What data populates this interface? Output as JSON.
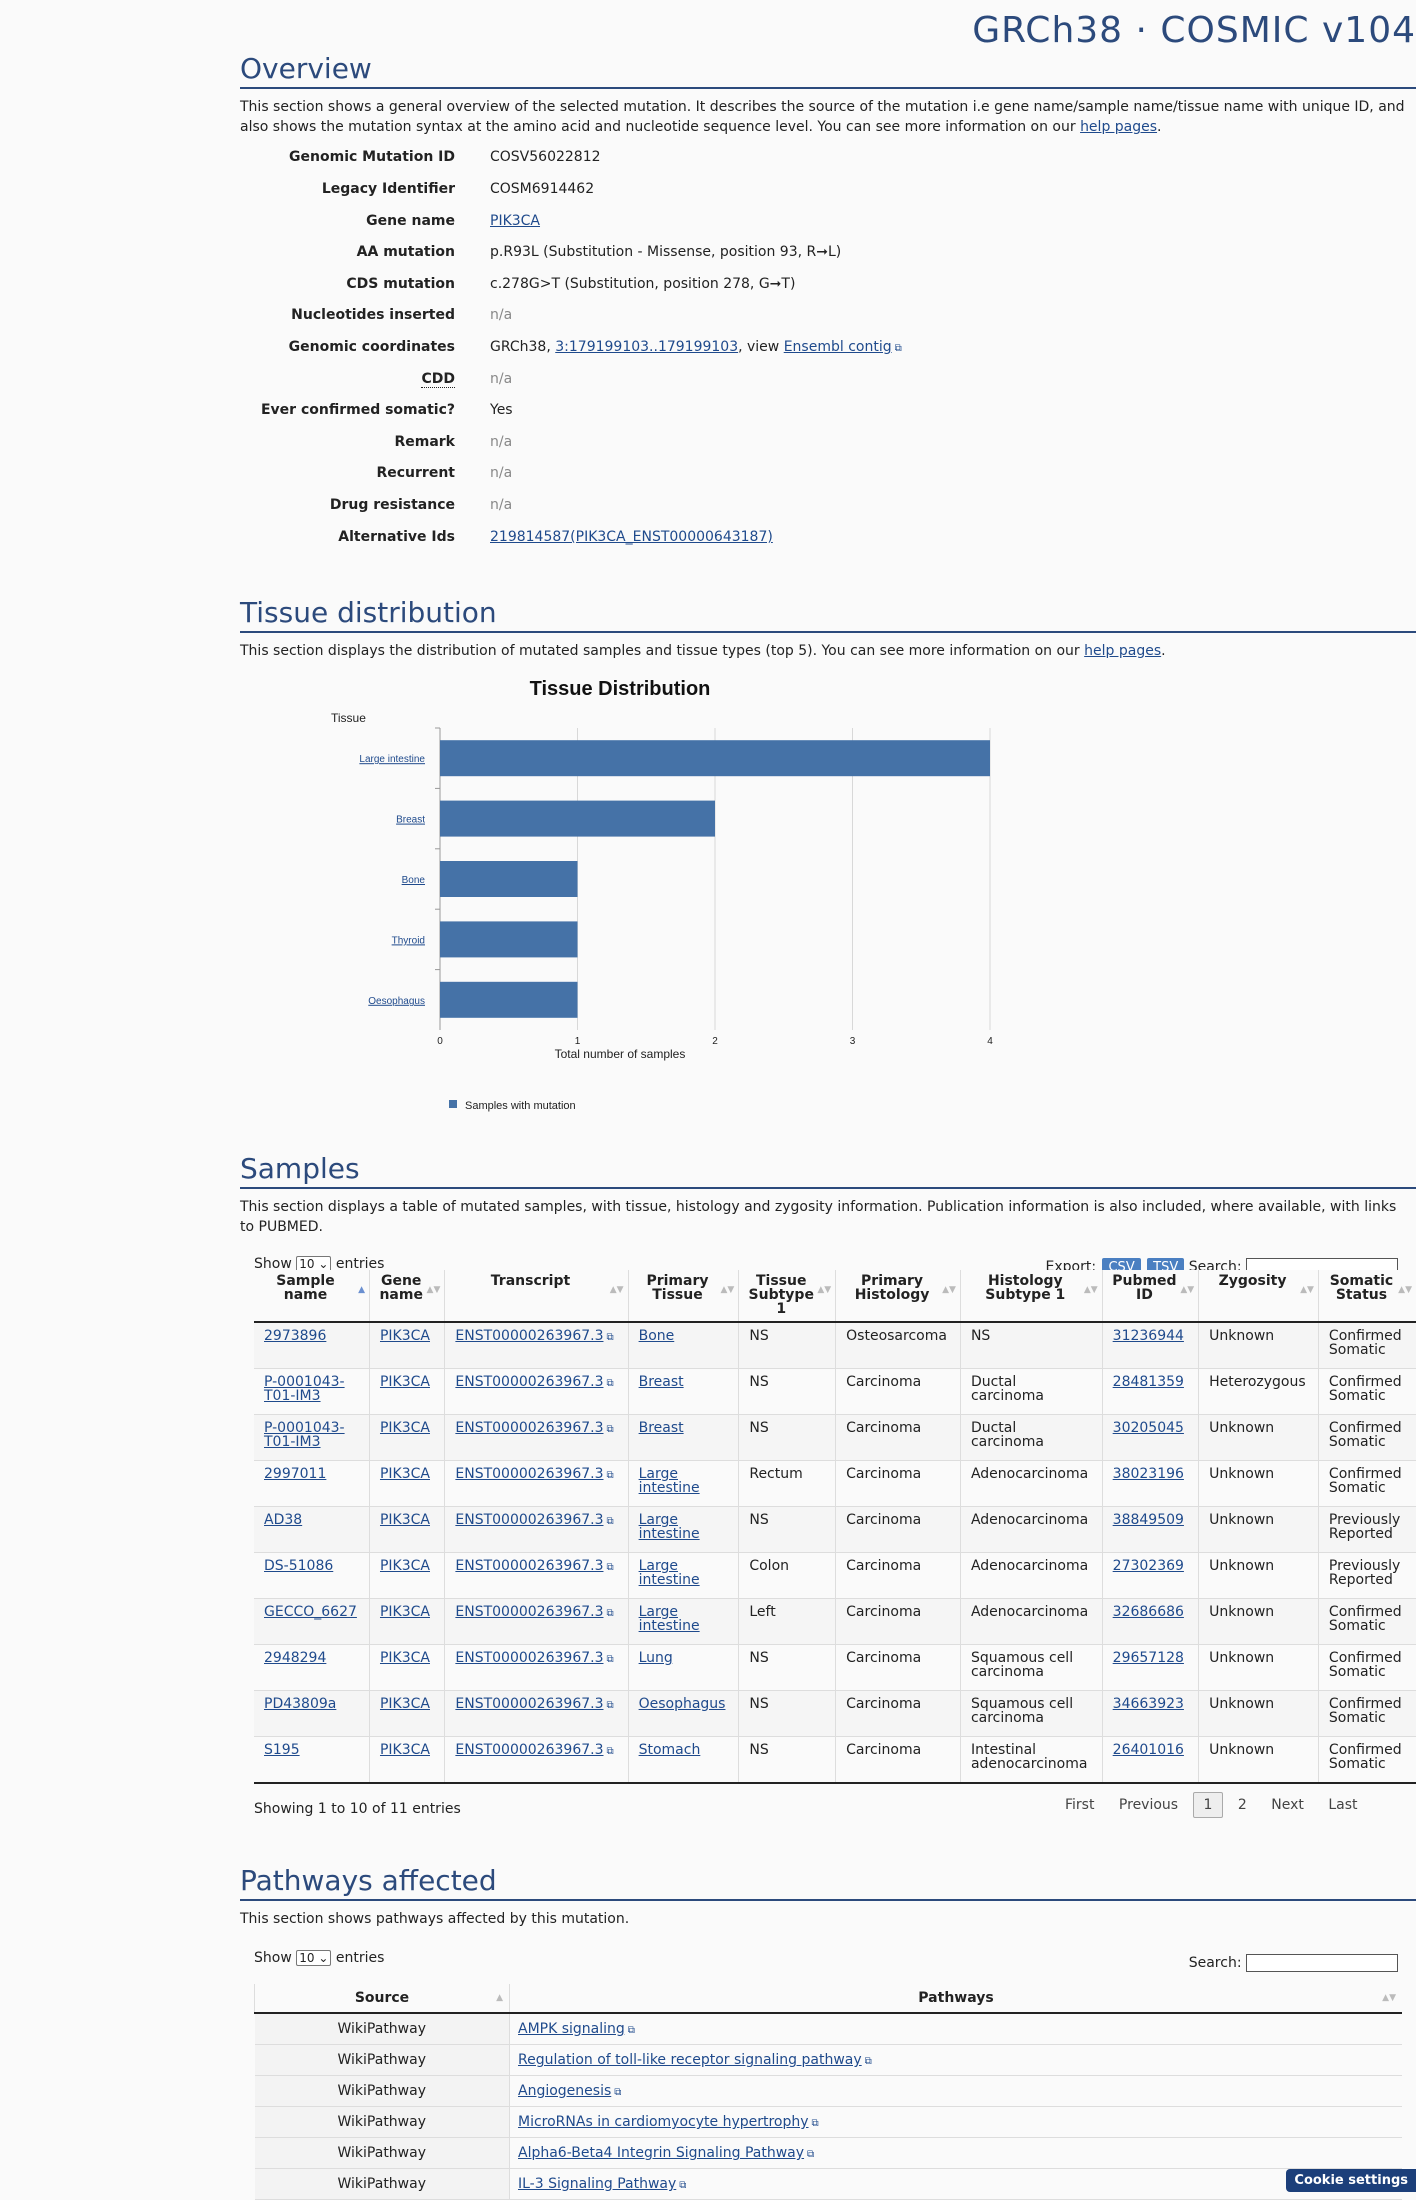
{
  "header": {
    "title": "GRCh38 · COSMIC v104"
  },
  "overview": {
    "title": "Overview",
    "desc_line1": "This section shows a general overview of the selected mutation. It describes the source of the mutation i.e gene name/sample name/tissue name with unique ID, and",
    "desc_line2_pre": "also shows the mutation syntax at the amino acid and nucleotide sequence level. You can see more information on our ",
    "help_link": "help pages",
    "desc_end": ".",
    "rows": {
      "genomic_id": {
        "label": "Genomic Mutation ID",
        "value": "COSV56022812"
      },
      "legacy_id": {
        "label": "Legacy Identifier",
        "value": "COSM6914462"
      },
      "gene": {
        "label": "Gene name",
        "value": "PIK3CA"
      },
      "aa": {
        "label": "AA mutation",
        "value": "p.R93L (Substitution - Missense, position 93, R➞L)"
      },
      "cds": {
        "label": "CDS mutation",
        "value": "c.278G>T (Substitution, position 278, G➞T)"
      },
      "nuc_ins": {
        "label": "Nucleotides inserted",
        "value": "n/a"
      },
      "coords": {
        "label": "Genomic coordinates",
        "prefix": "GRCh38, ",
        "link": "3:179199103..179199103",
        "mid": ", view ",
        "link2": "Ensembl contig"
      },
      "cdd": {
        "label": "CDD",
        "value": "n/a"
      },
      "confirmed": {
        "label": "Ever confirmed somatic?",
        "value": "Yes"
      },
      "remark": {
        "label": "Remark",
        "value": "n/a"
      },
      "recurrent": {
        "label": "Recurrent",
        "value": "n/a"
      },
      "drug": {
        "label": "Drug resistance",
        "value": "n/a"
      },
      "alt_ids": {
        "label": "Alternative Ids",
        "value": "219814587(PIK3CA_ENST00000643187)"
      }
    }
  },
  "tissue": {
    "title": "Tissue distribution",
    "desc_pre": "This section displays the distribution of mutated samples and tissue types (top 5). You can see more information on our ",
    "help_link": "help pages",
    "desc_end": "."
  },
  "chart_data": {
    "type": "bar",
    "orientation": "horizontal",
    "title": "Tissue Distribution",
    "ylabel": "Tissue",
    "xlabel": "Total number of samples",
    "categories": [
      "Large intestine",
      "Breast",
      "Bone",
      "Thyroid",
      "Oesophagus"
    ],
    "series": [
      {
        "name": "Samples with mutation",
        "values": [
          4,
          2,
          1,
          1,
          1
        ]
      }
    ],
    "xticks": [
      0,
      1,
      2,
      3,
      4
    ],
    "xlim": [
      0,
      4
    ],
    "grid": true,
    "legend": "bottom-left",
    "color": "#4572a7"
  },
  "samples": {
    "title": "Samples",
    "desc_line1": "This section displays a table of mutated samples, with tissue, histology and zygosity information. Publication information is also included, where available, with links",
    "desc_line2": "to PUBMED.",
    "show_label": "Show",
    "show_value": "10",
    "entries_label": "entries",
    "export_label": "Export:",
    "csv": "CSV",
    "tsv": "TSV",
    "search_label": "Search:",
    "columns": [
      [
        "Sample",
        "name"
      ],
      [
        "Gene",
        "name"
      ],
      [
        "Transcript",
        ""
      ],
      [
        "Primary",
        "Tissue"
      ],
      [
        "Tissue",
        "Subtype 1"
      ],
      [
        "Primary",
        "Histology"
      ],
      [
        "Histology",
        "Subtype 1"
      ],
      [
        "Pubmed",
        "ID"
      ],
      [
        "Zygosity",
        ""
      ],
      [
        "Somatic",
        "Status"
      ]
    ],
    "rows": [
      [
        "2973896",
        "PIK3CA",
        "ENST00000263967.3",
        "Bone",
        "NS",
        "Osteosarcoma",
        "NS",
        "31236944",
        "Unknown",
        "Confirmed Somatic"
      ],
      [
        "P-0001043-T01-IM3",
        "PIK3CA",
        "ENST00000263967.3",
        "Breast",
        "NS",
        "Carcinoma",
        "Ductal carcinoma",
        "28481359",
        "Heterozygous",
        "Confirmed Somatic"
      ],
      [
        "P-0001043-T01-IM3",
        "PIK3CA",
        "ENST00000263967.3",
        "Breast",
        "NS",
        "Carcinoma",
        "Ductal carcinoma",
        "30205045",
        "Unknown",
        "Confirmed Somatic"
      ],
      [
        "2997011",
        "PIK3CA",
        "ENST00000263967.3",
        "Large intestine",
        "Rectum",
        "Carcinoma",
        "Adenocarcinoma",
        "38023196",
        "Unknown",
        "Confirmed Somatic"
      ],
      [
        "AD38",
        "PIK3CA",
        "ENST00000263967.3",
        "Large intestine",
        "NS",
        "Carcinoma",
        "Adenocarcinoma",
        "38849509",
        "Unknown",
        "Previously Reported"
      ],
      [
        "DS-51086",
        "PIK3CA",
        "ENST00000263967.3",
        "Large intestine",
        "Colon",
        "Carcinoma",
        "Adenocarcinoma",
        "27302369",
        "Unknown",
        "Previously Reported"
      ],
      [
        "GECCO_6627",
        "PIK3CA",
        "ENST00000263967.3",
        "Large intestine",
        "Left",
        "Carcinoma",
        "Adenocarcinoma",
        "32686686",
        "Unknown",
        "Confirmed Somatic"
      ],
      [
        "2948294",
        "PIK3CA",
        "ENST00000263967.3",
        "Lung",
        "NS",
        "Carcinoma",
        "Squamous cell carcinoma",
        "29657128",
        "Unknown",
        "Confirmed Somatic"
      ],
      [
        "PD43809a",
        "PIK3CA",
        "ENST00000263967.3",
        "Oesophagus",
        "NS",
        "Carcinoma",
        "Squamous cell carcinoma",
        "34663923",
        "Unknown",
        "Confirmed Somatic"
      ],
      [
        "S195",
        "PIK3CA",
        "ENST00000263967.3",
        "Stomach",
        "NS",
        "Carcinoma",
        "Intestinal adenocarcinoma",
        "26401016",
        "Unknown",
        "Confirmed Somatic"
      ]
    ],
    "info": "Showing 1 to 10 of 11 entries",
    "pager": {
      "first": "First",
      "previous": "Previous",
      "p1": "1",
      "p2": "2",
      "next": "Next",
      "last": "Last"
    }
  },
  "pathways": {
    "title": "Pathways affected",
    "desc": "This section shows pathways affected by this mutation.",
    "show_label": "Show",
    "show_value": "10",
    "entries_label": "entries",
    "search_label": "Search:",
    "col_source": "Source",
    "col_pathways": "Pathways",
    "rows": [
      {
        "source": "WikiPathway",
        "pathway": "AMPK signaling"
      },
      {
        "source": "WikiPathway",
        "pathway": "Regulation of toll-like receptor signaling pathway"
      },
      {
        "source": "WikiPathway",
        "pathway": "Angiogenesis"
      },
      {
        "source": "WikiPathway",
        "pathway": "MicroRNAs in cardiomyocyte hypertrophy"
      },
      {
        "source": "WikiPathway",
        "pathway": "Alpha6-Beta4 Integrin Signaling Pathway"
      },
      {
        "source": "WikiPathway",
        "pathway": "IL-3 Signaling Pathway"
      }
    ]
  },
  "cookie": {
    "label": "Cookie settings"
  }
}
